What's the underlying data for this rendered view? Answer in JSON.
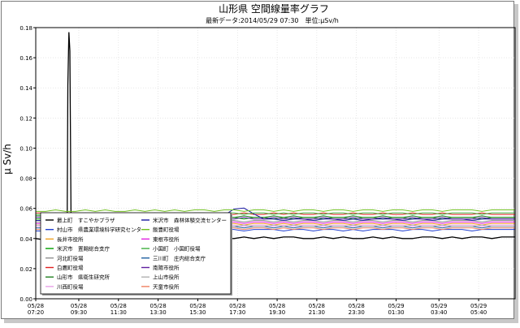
{
  "chart_data": {
    "type": "line",
    "title": "山形県 空間線量率グラフ",
    "subtitle": "最新データ:2014/05/29 07:30　単位:μSv/h",
    "ylabel": "μ Sv/h",
    "xlabel": "",
    "ylim": [
      0,
      0.18
    ],
    "y_ticks": [
      "0.00",
      "0.02",
      "0.04",
      "0.06",
      "0.08",
      "0.10",
      "0.12",
      "0.14",
      "0.16",
      "0.18"
    ],
    "x_ticks": [
      {
        "date": "05/28",
        "time": "07:20"
      },
      {
        "date": "05/28",
        "time": "09:30"
      },
      {
        "date": "05/28",
        "time": "11:30"
      },
      {
        "date": "05/28",
        "time": "13:30"
      },
      {
        "date": "05/28",
        "time": "15:30"
      },
      {
        "date": "05/28",
        "time": "17:30"
      },
      {
        "date": "05/28",
        "time": "19:30"
      },
      {
        "date": "05/28",
        "time": "21:30"
      },
      {
        "date": "05/28",
        "time": "23:30"
      },
      {
        "date": "05/29",
        "time": "01:30"
      },
      {
        "date": "05/29",
        "time": "03:40"
      },
      {
        "date": "05/29",
        "time": "05:40"
      }
    ],
    "x_tick_hours": [
      0,
      2.17,
      4.17,
      6.17,
      8.17,
      10.17,
      12.17,
      14.17,
      16.17,
      18.17,
      20.33,
      22.33
    ],
    "x_range_hours": [
      0,
      24.17
    ],
    "grid": true,
    "legend_position": "bottom-left",
    "series": [
      {
        "name": "最上町　すこやかプラザ",
        "color": "#000000",
        "values": [
          0.04,
          0.039,
          0.039,
          0.039,
          0.04,
          0.04,
          0.039,
          0.04,
          0.039,
          0.039,
          0.04,
          0.04,
          0.039,
          0.04,
          0.04,
          0.039,
          0.04,
          0.04,
          0.041,
          0.04,
          0.04,
          0.041,
          0.04,
          0.041,
          0.04,
          0.041,
          0.041,
          0.04,
          0.04,
          0.041,
          0.04,
          0.041,
          0.04,
          0.04,
          0.041,
          0.04,
          0.041,
          0.04,
          0.04,
          0.041,
          0.041,
          0.04,
          0.041,
          0.04,
          0.041,
          0.041,
          0.04,
          0.041,
          0.041
        ]
      },
      {
        "name": "村山市　県農業環境科学研究センター",
        "color": "#1f3fd0",
        "values": [
          0.045,
          0.045,
          0.046,
          0.045,
          0.045,
          0.046,
          0.045,
          0.046,
          0.045,
          0.045,
          0.046,
          0.045,
          0.046,
          0.045,
          0.046,
          0.045,
          0.046,
          0.046,
          0.045,
          0.046,
          0.046,
          0.045,
          0.046,
          0.046,
          0.046,
          0.045,
          0.046,
          0.046,
          0.045,
          0.046,
          0.046,
          0.045,
          0.046,
          0.045,
          0.046,
          0.046,
          0.046,
          0.045,
          0.046,
          0.046,
          0.045,
          0.046,
          0.046,
          0.046,
          0.045,
          0.046,
          0.046,
          0.046,
          0.046
        ]
      },
      {
        "name": "長井市役所",
        "color": "#f0a020",
        "values": [
          0.049,
          0.049,
          0.05,
          0.049,
          0.049,
          0.05,
          0.049,
          0.05,
          0.049,
          0.049,
          0.05,
          0.049,
          0.05,
          0.049,
          0.05,
          0.049,
          0.05,
          0.05,
          0.049,
          0.05,
          0.05,
          0.049,
          0.05,
          0.05,
          0.049,
          0.05,
          0.049,
          0.05,
          0.05,
          0.049,
          0.05,
          0.05,
          0.049,
          0.05,
          0.05,
          0.049,
          0.05,
          0.05,
          0.049,
          0.05,
          0.05,
          0.049,
          0.05,
          0.05,
          0.05,
          0.049,
          0.05,
          0.05,
          0.05
        ]
      },
      {
        "name": "米沢市　置賜総合支庁",
        "color": "#00a000",
        "values": [
          0.053,
          0.053,
          0.054,
          0.053,
          0.053,
          0.054,
          0.053,
          0.054,
          0.053,
          0.053,
          0.054,
          0.053,
          0.054,
          0.053,
          0.054,
          0.053,
          0.054,
          0.054,
          0.053,
          0.054,
          0.054,
          0.053,
          0.054,
          0.054,
          0.053,
          0.054,
          0.053,
          0.054,
          0.054,
          0.053,
          0.054,
          0.054,
          0.053,
          0.054,
          0.054,
          0.053,
          0.054,
          0.054,
          0.053,
          0.054,
          0.054,
          0.053,
          0.054,
          0.054,
          0.054,
          0.053,
          0.054,
          0.054,
          0.054
        ]
      },
      {
        "name": "河北町役場",
        "color": "#909090",
        "values": [
          0.051,
          0.051,
          0.052,
          0.051,
          0.051,
          0.052,
          0.051,
          0.052,
          0.051,
          0.051,
          0.052,
          0.051,
          0.052,
          0.051,
          0.052,
          0.051,
          0.052,
          0.052,
          0.051,
          0.052,
          0.052,
          0.051,
          0.052,
          0.052,
          0.051,
          0.052,
          0.051,
          0.052,
          0.052,
          0.051,
          0.052,
          0.052,
          0.051,
          0.052,
          0.052,
          0.051,
          0.052,
          0.052,
          0.051,
          0.052,
          0.052,
          0.051,
          0.052,
          0.052,
          0.052,
          0.051,
          0.052,
          0.052,
          0.052
        ]
      },
      {
        "name": "白鷹町役場",
        "color": "#e02020",
        "values": [
          0.057,
          0.057,
          0.056,
          0.057,
          0.057,
          0.056,
          0.057,
          0.056,
          0.057,
          0.057,
          0.056,
          0.057,
          0.056,
          0.057,
          0.056,
          0.057,
          0.056,
          0.056,
          0.057,
          0.056,
          0.056,
          0.057,
          0.056,
          0.056,
          0.057,
          0.056,
          0.057,
          0.056,
          0.056,
          0.057,
          0.056,
          0.056,
          0.057,
          0.056,
          0.056,
          0.057,
          0.056,
          0.056,
          0.057,
          0.056,
          0.056,
          0.057,
          0.056,
          0.056,
          0.056,
          0.057,
          0.056,
          0.056,
          0.056
        ]
      },
      {
        "name": "山形市　県衛生研究所",
        "color": "#208020",
        "values": [
          0.055,
          0.055,
          0.054,
          0.055,
          0.055,
          0.054,
          0.055,
          0.054,
          0.055,
          0.055,
          0.054,
          0.055,
          0.054,
          0.055,
          0.054,
          0.055,
          0.054,
          0.054,
          0.055,
          0.054,
          0.054,
          0.055,
          0.054,
          0.054,
          0.055,
          0.054,
          0.055,
          0.054,
          0.054,
          0.055,
          0.054,
          0.054,
          0.055,
          0.054,
          0.054,
          0.055,
          0.054,
          0.054,
          0.055,
          0.054,
          0.054,
          0.055,
          0.054,
          0.054,
          0.054,
          0.055,
          0.054,
          0.054,
          0.054
        ]
      },
      {
        "name": "川西町役場",
        "color": "#e8a0e8",
        "values": [
          0.048,
          0.048,
          0.049,
          0.048,
          0.048,
          0.049,
          0.048,
          0.049,
          0.048,
          0.048,
          0.049,
          0.048,
          0.049,
          0.048,
          0.049,
          0.048,
          0.049,
          0.049,
          0.048,
          0.049,
          0.049,
          0.048,
          0.049,
          0.049,
          0.048,
          0.049,
          0.048,
          0.049,
          0.049,
          0.048,
          0.049,
          0.049,
          0.048,
          0.049,
          0.049,
          0.048,
          0.049,
          0.049,
          0.048,
          0.049,
          0.049,
          0.048,
          0.049,
          0.049,
          0.049,
          0.048,
          0.049,
          0.049,
          0.049
        ]
      },
      {
        "name": "米沢市　森林体験交流センター",
        "color": "#1a1aa0",
        "values": [
          0.052,
          0.052,
          0.053,
          0.052,
          0.052,
          0.053,
          0.052,
          0.053,
          0.052,
          0.052,
          0.053,
          0.052,
          0.053,
          0.052,
          0.053,
          0.052,
          0.053,
          0.053,
          0.052,
          0.053,
          0.053,
          0.052,
          0.053,
          0.053,
          0.053,
          0.052,
          0.053,
          0.053,
          0.052,
          0.053,
          0.053,
          0.052,
          0.053,
          0.052,
          0.053,
          0.053,
          0.053,
          0.052,
          0.053,
          0.053,
          0.052,
          0.053,
          0.053,
          0.053,
          0.052,
          0.053,
          0.053,
          0.053,
          0.053
        ]
      },
      {
        "name": "飯豊町役場",
        "color": "#70c020",
        "values": [
          0.058,
          0.058,
          0.059,
          0.058,
          0.058,
          0.059,
          0.058,
          0.059,
          0.058,
          0.058,
          0.059,
          0.058,
          0.059,
          0.058,
          0.059,
          0.058,
          0.059,
          0.059,
          0.058,
          0.059,
          0.059,
          0.058,
          0.059,
          0.059,
          0.058,
          0.059,
          0.058,
          0.059,
          0.059,
          0.058,
          0.059,
          0.059,
          0.058,
          0.059,
          0.059,
          0.058,
          0.059,
          0.059,
          0.058,
          0.059,
          0.059,
          0.058,
          0.059,
          0.059,
          0.059,
          0.058,
          0.059,
          0.059,
          0.059
        ]
      },
      {
        "name": "東根市役所",
        "color": "#e020e0",
        "values": [
          0.05,
          0.05,
          0.051,
          0.05,
          0.05,
          0.051,
          0.05,
          0.051,
          0.05,
          0.05,
          0.051,
          0.05,
          0.051,
          0.05,
          0.051,
          0.05,
          0.051,
          0.051,
          0.05,
          0.051,
          0.051,
          0.05,
          0.051,
          0.051,
          0.05,
          0.051,
          0.05,
          0.051,
          0.051,
          0.05,
          0.051,
          0.051,
          0.05,
          0.051,
          0.051,
          0.05,
          0.051,
          0.051,
          0.05,
          0.051,
          0.051,
          0.05,
          0.051,
          0.051,
          0.051,
          0.05,
          0.051,
          0.051,
          0.051
        ]
      },
      {
        "name": "小国町　小国町役場",
        "color": "#40b040",
        "values": [
          0.056,
          0.056,
          0.057,
          0.056,
          0.056,
          0.057,
          0.056,
          0.057,
          0.056,
          0.056,
          0.057,
          0.056,
          0.057,
          0.056,
          0.057,
          0.056,
          0.057,
          0.057,
          0.056,
          0.057,
          0.057,
          0.056,
          0.057,
          0.057,
          0.056,
          0.057,
          0.056,
          0.057,
          0.057,
          0.056,
          0.057,
          0.057,
          0.056,
          0.057,
          0.057,
          0.056,
          0.057,
          0.057,
          0.056,
          0.057,
          0.057,
          0.056,
          0.057,
          0.057,
          0.057,
          0.056,
          0.057,
          0.057,
          0.057
        ]
      },
      {
        "name": "三川町　庄内総合支庁",
        "color": "#2060a0",
        "values": [
          0.047,
          0.047,
          0.048,
          0.047,
          0.047,
          0.048,
          0.047,
          0.048,
          0.047,
          0.047,
          0.048,
          0.047,
          0.048,
          0.047,
          0.048,
          0.047,
          0.048,
          0.048,
          0.047,
          0.048,
          0.048,
          0.047,
          0.048,
          0.048,
          0.047,
          0.048,
          0.047,
          0.048,
          0.048,
          0.047,
          0.048,
          0.048,
          0.047,
          0.048,
          0.048,
          0.047,
          0.048,
          0.048,
          0.047,
          0.048,
          0.048,
          0.047,
          0.048,
          0.048,
          0.048,
          0.047,
          0.048,
          0.048,
          0.048
        ]
      },
      {
        "name": "南陽市役所",
        "color": "#6020a0",
        "values": [
          0.054,
          0.054,
          0.053,
          0.054,
          0.054,
          0.053,
          0.054,
          0.053,
          0.054,
          0.054,
          0.053,
          0.054,
          0.053,
          0.054,
          0.053,
          0.054,
          0.053,
          0.053,
          0.054,
          0.053,
          0.053,
          0.054,
          0.053,
          0.053,
          0.054,
          0.053,
          0.054,
          0.053,
          0.053,
          0.054,
          0.053,
          0.053,
          0.054,
          0.053,
          0.053,
          0.054,
          0.053,
          0.053,
          0.054,
          0.053,
          0.053,
          0.054,
          0.053,
          0.053,
          0.053,
          0.054,
          0.053,
          0.053,
          0.053
        ]
      },
      {
        "name": "上山市役所",
        "color": "#b0b0b0",
        "values": [
          0.049,
          0.049,
          0.048,
          0.049,
          0.049,
          0.048,
          0.049,
          0.048,
          0.049,
          0.049,
          0.048,
          0.049,
          0.048,
          0.049,
          0.048,
          0.049,
          0.048,
          0.048,
          0.049,
          0.048,
          0.048,
          0.049,
          0.048,
          0.048,
          0.049,
          0.048,
          0.049,
          0.048,
          0.048,
          0.049,
          0.048,
          0.048,
          0.049,
          0.048,
          0.048,
          0.049,
          0.048,
          0.048,
          0.049,
          0.048,
          0.048,
          0.049,
          0.048,
          0.048,
          0.048,
          0.049,
          0.048,
          0.048,
          0.048
        ]
      },
      {
        "name": "天童市役所",
        "color": "#f08060",
        "values": [
          0.046,
          0.046,
          0.047,
          0.046,
          0.046,
          0.047,
          0.046,
          0.047,
          0.046,
          0.046,
          0.047,
          0.046,
          0.047,
          0.046,
          0.047,
          0.046,
          0.047,
          0.047,
          0.046,
          0.047,
          0.047,
          0.046,
          0.047,
          0.047,
          0.046,
          0.047,
          0.046,
          0.047,
          0.047,
          0.046,
          0.047,
          0.047,
          0.046,
          0.047,
          0.047,
          0.046,
          0.047,
          0.047,
          0.046,
          0.047,
          0.047,
          0.046,
          0.047,
          0.047,
          0.047,
          0.046,
          0.047,
          0.047,
          0.047
        ]
      }
    ],
    "spike": {
      "series_index": 0,
      "hour": 1.67,
      "value": 0.177,
      "base": 0.04,
      "width_hours": 0.35
    },
    "bump": {
      "series_index": 8,
      "hour": 10.3,
      "value": 0.062,
      "width_hours": 1.1
    },
    "interval_hours": 0.5
  }
}
